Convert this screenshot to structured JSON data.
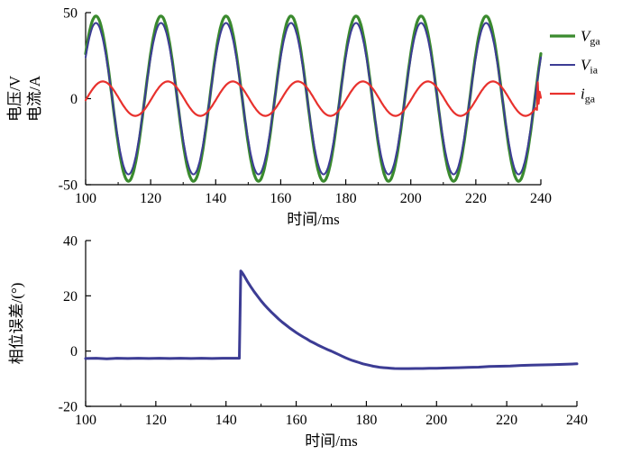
{
  "figure": {
    "background": "#ffffff",
    "axis_color": "#000000"
  },
  "chart_data": [
    {
      "type": "line",
      "title": "",
      "xlabel": "时间/ms",
      "ylabel_lines": [
        "电压/V",
        "电流/A"
      ],
      "xlim": [
        100,
        240
      ],
      "ylim": [
        -50,
        50
      ],
      "xticks": [
        100,
        120,
        140,
        160,
        180,
        200,
        220,
        240
      ],
      "xminor_step": 10,
      "yticks": [
        -50,
        0,
        50
      ],
      "grid": false,
      "legend_position": "right",
      "series": [
        {
          "name": "Vga",
          "color": "#3a8a2e",
          "width": 3.2,
          "wave": {
            "amplitude": 48,
            "period": 20,
            "phase_deg": 33,
            "offset": 0
          }
        },
        {
          "name": "Via",
          "color": "#3c3c94",
          "width": 2,
          "wave": {
            "amplitude": 44,
            "period": 20,
            "phase_deg": 33,
            "offset": 0
          }
        },
        {
          "name": "iga",
          "color": "#e8312d",
          "width": 2.2,
          "wave": {
            "amplitude": 10,
            "period": 20,
            "phase_deg": -5,
            "offset": 0,
            "t_end": 238.4
          },
          "extra_points": [
            [
              238.8,
              -6.5
            ],
            [
              239.05,
              9.5
            ],
            [
              239.3,
              -3
            ],
            [
              239.6,
              4
            ],
            [
              240,
              0.5
            ]
          ]
        }
      ],
      "legend": {
        "items": [
          {
            "main": "V",
            "sub": "ga",
            "color": "#3a8a2e",
            "width": 3.2
          },
          {
            "main": "V",
            "sub": "ia",
            "color": "#3c3c94",
            "width": 2
          },
          {
            "main": "i",
            "sub": "ga",
            "color": "#e8312d",
            "width": 2.2
          }
        ]
      }
    },
    {
      "type": "line",
      "title": "",
      "xlabel": "时间/ms",
      "ylabel": "相位误差/(°)",
      "xlim": [
        100,
        240
      ],
      "ylim": [
        -20,
        40
      ],
      "xticks": [
        100,
        120,
        140,
        160,
        180,
        200,
        220,
        240
      ],
      "xminor_step": 10,
      "yticks": [
        -20,
        0,
        20,
        40
      ],
      "grid": false,
      "series": [
        {
          "name": "phase_error",
          "color": "#3c3c94",
          "width": 3,
          "points": [
            [
              100,
              -2.7
            ],
            [
              103,
              -2.6
            ],
            [
              106,
              -2.8
            ],
            [
              109,
              -2.6
            ],
            [
              112,
              -2.7
            ],
            [
              115,
              -2.6
            ],
            [
              118,
              -2.7
            ],
            [
              121,
              -2.6
            ],
            [
              124,
              -2.7
            ],
            [
              127,
              -2.6
            ],
            [
              130,
              -2.7
            ],
            [
              133,
              -2.6
            ],
            [
              136,
              -2.7
            ],
            [
              139,
              -2.6
            ],
            [
              142,
              -2.6
            ],
            [
              143.8,
              -2.6
            ],
            [
              144.2,
              29
            ],
            [
              144.6,
              28.4
            ],
            [
              145,
              27.6
            ],
            [
              146,
              25.4
            ],
            [
              147,
              23.4
            ],
            [
              148,
              21.5
            ],
            [
              149,
              19.8
            ],
            [
              150,
              18.2
            ],
            [
              151,
              16.7
            ],
            [
              152,
              15.3
            ],
            [
              153,
              14.0
            ],
            [
              154,
              12.8
            ],
            [
              155,
              11.6
            ],
            [
              156,
              10.5
            ],
            [
              157,
              9.5
            ],
            [
              158,
              8.5
            ],
            [
              159,
              7.6
            ],
            [
              160,
              6.7
            ],
            [
              161,
              5.9
            ],
            [
              162,
              5.1
            ],
            [
              163,
              4.4
            ],
            [
              164,
              3.6
            ],
            [
              165,
              3.0
            ],
            [
              166,
              2.3
            ],
            [
              167,
              1.7
            ],
            [
              168,
              1.1
            ],
            [
              169,
              0.5
            ],
            [
              170,
              0.0
            ],
            [
              171,
              -0.6
            ],
            [
              172,
              -1.2
            ],
            [
              173,
              -1.8
            ],
            [
              174,
              -2.4
            ],
            [
              175,
              -2.9
            ],
            [
              176,
              -3.4
            ],
            [
              177,
              -3.8
            ],
            [
              178,
              -4.2
            ],
            [
              179,
              -4.6
            ],
            [
              180,
              -4.9
            ],
            [
              181,
              -5.2
            ],
            [
              182,
              -5.5
            ],
            [
              183,
              -5.7
            ],
            [
              184,
              -5.9
            ],
            [
              185,
              -6.0
            ],
            [
              186,
              -6.1
            ],
            [
              187,
              -6.2
            ],
            [
              188,
              -6.3
            ],
            [
              190,
              -6.35
            ],
            [
              192,
              -6.35
            ],
            [
              194,
              -6.3
            ],
            [
              196,
              -6.3
            ],
            [
              198,
              -6.25
            ],
            [
              200,
              -6.2
            ],
            [
              203,
              -6.1
            ],
            [
              206,
              -6.0
            ],
            [
              209,
              -5.9
            ],
            [
              212,
              -5.8
            ],
            [
              215,
              -5.6
            ],
            [
              218,
              -5.5
            ],
            [
              221,
              -5.4
            ],
            [
              224,
              -5.2
            ],
            [
              227,
              -5.1
            ],
            [
              230,
              -5.0
            ],
            [
              233,
              -4.9
            ],
            [
              236,
              -4.8
            ],
            [
              240,
              -4.6
            ]
          ]
        }
      ]
    }
  ]
}
